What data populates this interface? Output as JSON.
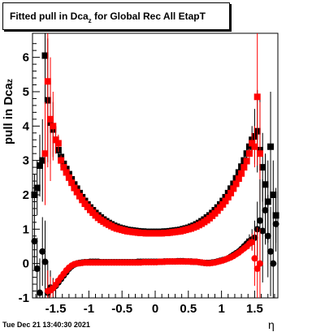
{
  "title": {
    "text": "Fitted pull in Dca",
    "subscript": "z",
    "suffix": " for Global Rec All EtapT"
  },
  "ylabel": {
    "text": "pull in Dca",
    "subscript": "z"
  },
  "xlabel": "η",
  "timestamp": "Tue Dec 21 13:40:30 2021",
  "colors": {
    "black": "#000000",
    "red": "#ff0000",
    "axis": "#000000"
  },
  "chart_data": {
    "type": "scatter",
    "title": "Fitted pull in Dca_z for Global Rec All EtapT",
    "xlabel": "η",
    "ylabel": "pull in Dca_z",
    "xlim": [
      -1.85,
      1.85
    ],
    "ylim": [
      -1.0,
      6.7
    ],
    "grid": false,
    "x_ticks": [
      -1.5,
      -1,
      -0.5,
      0,
      0.5,
      1,
      1.5
    ],
    "x_tick_labels": [
      "-1.5",
      "-1",
      "-0.5",
      "0",
      "0.5",
      "1",
      "1.5"
    ],
    "y_ticks": [
      -1,
      0,
      1,
      2,
      3,
      4,
      5,
      6
    ],
    "y_tick_labels": [
      "-1",
      "0",
      "1",
      "2",
      "3",
      "4",
      "5",
      "6"
    ],
    "series": [
      {
        "color": "black",
        "marker": "square",
        "x": [
          -1.82,
          -1.78,
          -1.74,
          -1.7,
          -1.66,
          -1.62,
          -1.58,
          -1.54,
          -1.5,
          -1.46,
          -1.42,
          -1.38,
          -1.34,
          -1.3,
          -1.26,
          -1.22,
          -1.18,
          -1.14,
          -1.1,
          -1.06,
          -1.02,
          -0.98,
          -0.94,
          -0.9,
          -0.86,
          -0.82,
          -0.78,
          -0.74,
          -0.7,
          -0.66,
          -0.62,
          -0.58,
          -0.54,
          -0.5,
          -0.46,
          -0.42,
          -0.38,
          -0.34,
          -0.3,
          -0.26,
          -0.22,
          -0.18,
          -0.14,
          -0.1,
          -0.06,
          -0.02,
          0.02,
          0.06,
          0.1,
          0.14,
          0.18,
          0.22,
          0.26,
          0.3,
          0.34,
          0.38,
          0.42,
          0.46,
          0.5,
          0.54,
          0.58,
          0.62,
          0.66,
          0.7,
          0.74,
          0.78,
          0.82,
          0.86,
          0.9,
          0.94,
          0.98,
          1.02,
          1.06,
          1.1,
          1.14,
          1.18,
          1.22,
          1.26,
          1.3,
          1.34,
          1.38,
          1.42,
          1.46,
          1.5,
          1.54,
          1.58,
          1.62,
          1.66,
          1.7,
          1.74,
          1.78,
          1.82
        ],
        "y": [
          2.0,
          2.2,
          2.85,
          3.0,
          6.05,
          4.75,
          4.1,
          3.9,
          3.6,
          3.3,
          3.1,
          2.9,
          2.75,
          2.6,
          2.45,
          2.3,
          2.18,
          2.05,
          1.93,
          1.82,
          1.72,
          1.63,
          1.55,
          1.47,
          1.4,
          1.34,
          1.28,
          1.23,
          1.18,
          1.14,
          1.1,
          1.07,
          1.04,
          1.02,
          1.0,
          0.98,
          0.97,
          0.96,
          0.95,
          0.94,
          0.93,
          0.93,
          0.92,
          0.92,
          0.92,
          0.92,
          0.92,
          0.92,
          0.92,
          0.93,
          0.93,
          0.94,
          0.95,
          0.96,
          0.97,
          0.98,
          1.0,
          1.02,
          1.04,
          1.07,
          1.1,
          1.14,
          1.18,
          1.23,
          1.28,
          1.34,
          1.4,
          1.47,
          1.55,
          1.63,
          1.72,
          1.82,
          1.93,
          2.05,
          2.18,
          2.32,
          2.48,
          2.65,
          2.82,
          3.0,
          3.2,
          3.4,
          3.6,
          3.7,
          3.85,
          3.3,
          2.8,
          2.3,
          1.8,
          3.4,
          2.0,
          1.4
        ],
        "err": [
          0.6,
          0.8,
          0.9,
          1.2,
          2.5,
          1.8,
          1.2,
          0.8,
          0.4,
          0.25,
          0.15,
          0.1,
          0.08,
          0.07,
          0.06,
          0.05,
          0.05,
          0.04,
          0.04,
          0.04,
          0.03,
          0.03,
          0.03,
          0.03,
          0.03,
          0.03,
          0.03,
          0.03,
          0.03,
          0.03,
          0.03,
          0.03,
          0.03,
          0.03,
          0.03,
          0.03,
          0.03,
          0.03,
          0.03,
          0.03,
          0.03,
          0.03,
          0.03,
          0.03,
          0.03,
          0.03,
          0.03,
          0.03,
          0.03,
          0.03,
          0.03,
          0.03,
          0.03,
          0.03,
          0.03,
          0.03,
          0.03,
          0.03,
          0.03,
          0.03,
          0.03,
          0.03,
          0.03,
          0.03,
          0.03,
          0.03,
          0.03,
          0.03,
          0.03,
          0.03,
          0.03,
          0.04,
          0.04,
          0.04,
          0.05,
          0.05,
          0.06,
          0.07,
          0.08,
          0.1,
          0.15,
          0.25,
          0.4,
          0.8,
          1.2,
          1.5,
          1.0,
          0.9,
          1.2,
          1.6,
          1.0,
          0.8
        ]
      },
      {
        "color": "red",
        "marker": "square",
        "x": [
          -1.66,
          -1.62,
          -1.58,
          -1.54,
          -1.5,
          -1.46,
          -1.42,
          -1.38,
          -1.34,
          -1.3,
          -1.26,
          -1.22,
          -1.18,
          -1.14,
          -1.1,
          -1.06,
          -1.02,
          -0.98,
          -0.94,
          -0.9,
          -0.86,
          -0.82,
          -0.78,
          -0.74,
          -0.7,
          -0.66,
          -0.62,
          -0.58,
          -0.54,
          -0.5,
          -0.46,
          -0.42,
          -0.38,
          -0.34,
          -0.3,
          -0.26,
          -0.22,
          -0.18,
          -0.14,
          -0.1,
          -0.06,
          -0.02,
          0.02,
          0.06,
          0.1,
          0.14,
          0.18,
          0.22,
          0.26,
          0.3,
          0.34,
          0.38,
          0.42,
          0.46,
          0.5,
          0.54,
          0.58,
          0.62,
          0.66,
          0.7,
          0.74,
          0.78,
          0.82,
          0.86,
          0.9,
          0.94,
          0.98,
          1.02,
          1.06,
          1.1,
          1.14,
          1.18,
          1.22,
          1.26,
          1.3,
          1.34,
          1.38,
          1.42,
          1.46,
          1.5,
          1.54,
          1.58
        ],
        "y": [
          3.2,
          5.3,
          4.2,
          4.0,
          3.6,
          3.5,
          3.0,
          2.8,
          2.65,
          2.5,
          2.35,
          2.2,
          2.08,
          1.96,
          1.85,
          1.74,
          1.65,
          1.56,
          1.48,
          1.4,
          1.33,
          1.27,
          1.22,
          1.17,
          1.13,
          1.09,
          1.05,
          1.02,
          1.0,
          0.98,
          0.96,
          0.94,
          0.93,
          0.92,
          0.91,
          0.9,
          0.89,
          0.89,
          0.88,
          0.88,
          0.88,
          0.88,
          0.88,
          0.88,
          0.88,
          0.89,
          0.89,
          0.9,
          0.91,
          0.92,
          0.93,
          0.94,
          0.96,
          0.98,
          1.0,
          1.02,
          1.05,
          1.08,
          1.12,
          1.16,
          1.21,
          1.26,
          1.32,
          1.39,
          1.46,
          1.54,
          1.63,
          1.72,
          1.82,
          1.93,
          2.05,
          2.18,
          2.32,
          2.47,
          2.62,
          2.8,
          2.98,
          3.2,
          3.5,
          3.4,
          4.85,
          3.2
        ],
        "err": [
          1.5,
          2.5,
          1.8,
          1.0,
          0.4,
          0.25,
          0.15,
          0.1,
          0.08,
          0.07,
          0.06,
          0.05,
          0.05,
          0.04,
          0.04,
          0.04,
          0.03,
          0.03,
          0.03,
          0.03,
          0.03,
          0.03,
          0.03,
          0.03,
          0.03,
          0.03,
          0.03,
          0.03,
          0.03,
          0.03,
          0.03,
          0.03,
          0.03,
          0.03,
          0.03,
          0.03,
          0.03,
          0.03,
          0.03,
          0.03,
          0.03,
          0.03,
          0.03,
          0.03,
          0.03,
          0.03,
          0.03,
          0.03,
          0.03,
          0.03,
          0.03,
          0.03,
          0.03,
          0.03,
          0.03,
          0.03,
          0.03,
          0.03,
          0.03,
          0.03,
          0.03,
          0.03,
          0.03,
          0.03,
          0.03,
          0.03,
          0.03,
          0.03,
          0.04,
          0.04,
          0.04,
          0.05,
          0.05,
          0.06,
          0.07,
          0.08,
          0.1,
          0.15,
          0.3,
          0.6,
          2.0,
          1.5
        ]
      },
      {
        "color": "black",
        "marker": "circle",
        "x": [
          -1.82,
          -1.78,
          -1.74,
          -1.7,
          -1.66,
          -1.62,
          -1.58,
          -1.54,
          -1.5,
          -1.46,
          -1.42,
          -1.38,
          -1.34,
          -1.3,
          -1.26,
          -1.22,
          -1.18,
          -1.14,
          -1.1,
          -1.06,
          -1.02,
          -0.98,
          -0.94,
          -0.9,
          -0.86,
          -0.82,
          -0.78,
          -0.74,
          -0.7,
          -0.66,
          -0.62,
          -0.58,
          -0.54,
          -0.5,
          -0.46,
          -0.42,
          -0.38,
          -0.34,
          -0.3,
          -0.26,
          -0.22,
          -0.18,
          -0.14,
          -0.1,
          -0.06,
          -0.02,
          0.02,
          0.06,
          0.1,
          0.14,
          0.18,
          0.22,
          0.26,
          0.3,
          0.34,
          0.38,
          0.42,
          0.46,
          0.5,
          0.54,
          0.58,
          0.62,
          0.66,
          0.7,
          0.74,
          0.78,
          0.82,
          0.86,
          0.9,
          0.94,
          0.98,
          1.02,
          1.06,
          1.1,
          1.14,
          1.18,
          1.22,
          1.26,
          1.3,
          1.34,
          1.38,
          1.42,
          1.46,
          1.5,
          1.54,
          1.58,
          1.62,
          1.66,
          1.7,
          1.74,
          1.78,
          1.82
        ],
        "y": [
          0.65,
          -0.15,
          -0.85,
          0.35,
          0.05,
          -0.85,
          -0.7,
          -0.72,
          -0.65,
          -0.55,
          -0.45,
          -0.35,
          -0.25,
          -0.15,
          -0.08,
          -0.03,
          0.0,
          0.02,
          0.03,
          0.04,
          0.04,
          0.05,
          0.05,
          0.05,
          0.05,
          0.04,
          0.04,
          0.04,
          0.04,
          0.04,
          0.04,
          0.04,
          0.04,
          0.04,
          0.04,
          0.04,
          0.04,
          0.04,
          0.04,
          0.05,
          0.05,
          0.05,
          0.05,
          0.05,
          0.05,
          0.05,
          0.05,
          0.05,
          0.05,
          0.06,
          0.06,
          0.06,
          0.06,
          0.06,
          0.07,
          0.07,
          0.07,
          0.06,
          0.06,
          0.06,
          0.05,
          0.05,
          0.04,
          0.03,
          0.02,
          0.02,
          0.02,
          0.03,
          0.04,
          0.06,
          0.08,
          0.1,
          0.12,
          0.15,
          0.2,
          0.25,
          0.3,
          0.35,
          0.42,
          0.5,
          0.58,
          0.65,
          0.7,
          0.75,
          1.0,
          1.25,
          0.95,
          1.55,
          0.8,
          0.35,
          0.0,
          1.15
        ],
        "err": [
          0.8,
          0.9,
          1.0,
          1.0,
          1.2,
          0.9,
          0.5,
          0.3,
          0.2,
          0.15,
          0.1,
          0.08,
          0.06,
          0.05,
          0.05,
          0.04,
          0.04,
          0.03,
          0.03,
          0.03,
          0.03,
          0.03,
          0.03,
          0.03,
          0.03,
          0.03,
          0.03,
          0.03,
          0.03,
          0.03,
          0.03,
          0.03,
          0.03,
          0.03,
          0.03,
          0.03,
          0.03,
          0.03,
          0.03,
          0.03,
          0.03,
          0.03,
          0.03,
          0.03,
          0.03,
          0.03,
          0.03,
          0.03,
          0.03,
          0.03,
          0.03,
          0.03,
          0.03,
          0.03,
          0.03,
          0.03,
          0.03,
          0.03,
          0.03,
          0.03,
          0.03,
          0.03,
          0.03,
          0.03,
          0.03,
          0.03,
          0.03,
          0.03,
          0.03,
          0.03,
          0.03,
          0.03,
          0.03,
          0.04,
          0.04,
          0.05,
          0.05,
          0.06,
          0.08,
          0.1,
          0.15,
          0.2,
          0.3,
          0.5,
          0.8,
          1.2,
          1.5,
          1.0,
          1.2,
          1.3,
          1.0,
          0.8
        ]
      },
      {
        "color": "red",
        "marker": "circle",
        "x": [
          -1.62,
          -1.58,
          -1.54,
          -1.5,
          -1.46,
          -1.42,
          -1.38,
          -1.34,
          -1.3,
          -1.26,
          -1.22,
          -1.18,
          -1.14,
          -1.1,
          -1.06,
          -1.02,
          -0.98,
          -0.94,
          -0.9,
          -0.86,
          -0.82,
          -0.78,
          -0.74,
          -0.7,
          -0.66,
          -0.62,
          -0.58,
          -0.54,
          -0.5,
          -0.46,
          -0.42,
          -0.38,
          -0.34,
          -0.3,
          -0.26,
          -0.22,
          -0.18,
          -0.14,
          -0.1,
          -0.06,
          -0.02,
          0.02,
          0.06,
          0.1,
          0.14,
          0.18,
          0.22,
          0.26,
          0.3,
          0.34,
          0.38,
          0.42,
          0.46,
          0.5,
          0.54,
          0.58,
          0.62,
          0.66,
          0.7,
          0.74,
          0.78,
          0.82,
          0.86,
          0.9,
          0.94,
          0.98,
          1.02,
          1.06,
          1.1,
          1.14,
          1.18,
          1.22,
          1.26,
          1.3,
          1.34,
          1.38,
          1.42,
          1.46,
          1.5,
          1.54,
          1.58
        ],
        "y": [
          -0.8,
          -0.78,
          -0.72,
          -0.62,
          -0.5,
          -0.4,
          -0.3,
          -0.2,
          -0.12,
          -0.06,
          -0.02,
          0.0,
          0.01,
          0.02,
          0.03,
          0.03,
          0.03,
          0.03,
          0.03,
          0.03,
          0.03,
          0.03,
          0.03,
          0.03,
          0.03,
          0.03,
          0.03,
          0.03,
          0.03,
          0.03,
          0.03,
          0.03,
          0.03,
          0.03,
          0.03,
          0.03,
          0.04,
          0.04,
          0.04,
          0.04,
          0.04,
          0.04,
          0.05,
          0.05,
          0.05,
          0.06,
          0.06,
          0.06,
          0.06,
          0.06,
          0.06,
          0.06,
          0.06,
          0.06,
          0.05,
          0.05,
          0.05,
          0.04,
          0.03,
          0.02,
          0.01,
          0.01,
          0.02,
          0.03,
          0.05,
          0.07,
          0.09,
          0.12,
          0.15,
          0.18,
          0.22,
          0.27,
          0.32,
          0.38,
          0.44,
          0.5,
          0.58,
          0.62,
          0.15,
          -0.15,
          0.0
        ],
        "err": [
          0.6,
          0.4,
          0.25,
          0.15,
          0.1,
          0.08,
          0.06,
          0.05,
          0.05,
          0.04,
          0.04,
          0.03,
          0.03,
          0.03,
          0.03,
          0.03,
          0.03,
          0.03,
          0.03,
          0.03,
          0.03,
          0.03,
          0.03,
          0.03,
          0.03,
          0.03,
          0.03,
          0.03,
          0.03,
          0.03,
          0.03,
          0.03,
          0.03,
          0.03,
          0.03,
          0.03,
          0.03,
          0.03,
          0.03,
          0.03,
          0.03,
          0.03,
          0.03,
          0.03,
          0.03,
          0.03,
          0.03,
          0.03,
          0.03,
          0.03,
          0.03,
          0.03,
          0.03,
          0.03,
          0.03,
          0.03,
          0.03,
          0.03,
          0.03,
          0.03,
          0.03,
          0.03,
          0.03,
          0.03,
          0.03,
          0.03,
          0.03,
          0.03,
          0.04,
          0.04,
          0.05,
          0.05,
          0.06,
          0.07,
          0.08,
          0.1,
          0.15,
          0.25,
          0.8,
          1.2,
          1.0
        ]
      }
    ]
  }
}
